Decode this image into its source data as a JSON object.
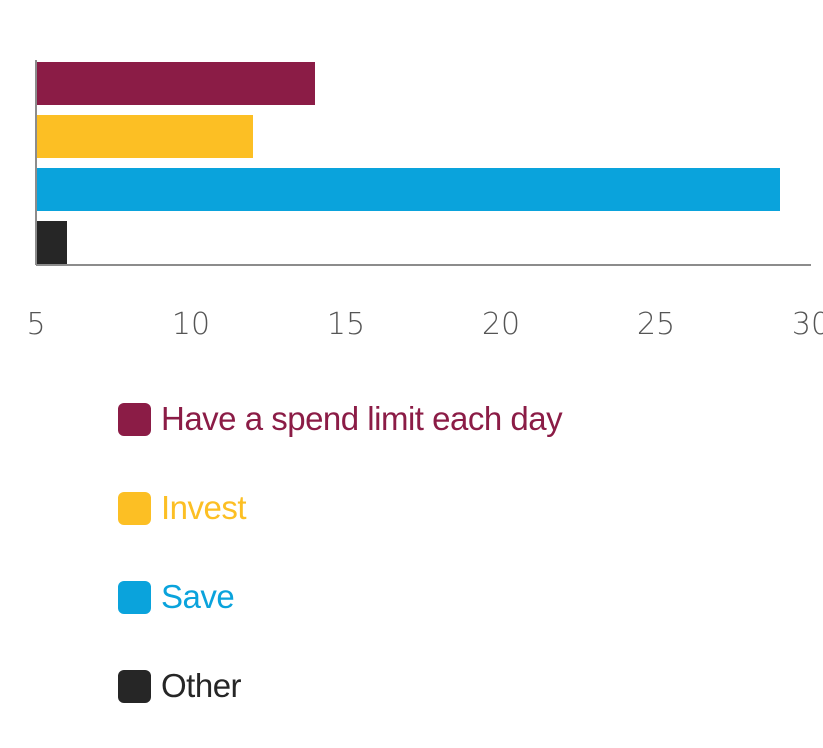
{
  "colors": {
    "spend_limit": "#8b1c46",
    "invest": "#fcbf24",
    "save": "#0aa3dc",
    "other": "#262626",
    "axis": "#8c8c8c",
    "tick_text": "#555555"
  },
  "chart_data": {
    "type": "bar",
    "orientation": "horizontal",
    "title": "",
    "xlabel": "",
    "ylabel": "",
    "xlim": [
      5,
      30
    ],
    "x_ticks": [
      5,
      10,
      15,
      20,
      25,
      30
    ],
    "x_tick_labels": [
      "5",
      "10",
      "15",
      "20",
      "25",
      "30"
    ],
    "grid": false,
    "legend_placement": "bottom",
    "categories": [
      "Have a spend limit each day",
      "Invest",
      "Save",
      "Other"
    ],
    "values": [
      14,
      12,
      29,
      6
    ],
    "bar_colors": [
      "#8b1c46",
      "#fcbf24",
      "#0aa3dc",
      "#262626"
    ]
  },
  "legend": {
    "items": [
      {
        "label": "Have a spend limit each day",
        "color": "#8b1c46"
      },
      {
        "label": "Invest",
        "color": "#fcbf24"
      },
      {
        "label": "Save",
        "color": "#0aa3dc"
      },
      {
        "label": "Other",
        "color": "#262626"
      }
    ]
  }
}
